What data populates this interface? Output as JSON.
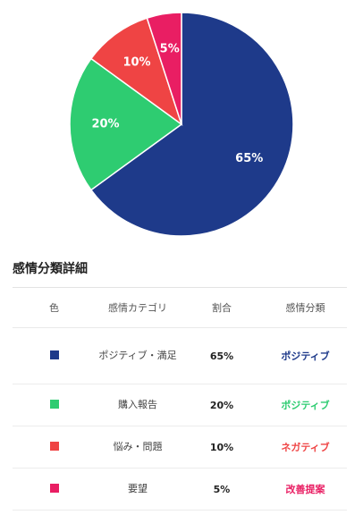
{
  "chart_data": {
    "type": "pie",
    "slices": [
      {
        "label": "ポジティブ・満足",
        "value": 65,
        "display": "65%",
        "color": "#1e3a8a"
      },
      {
        "label": "購入報告",
        "value": 20,
        "display": "20%",
        "color": "#2ecc71"
      },
      {
        "label": "悩み・問題",
        "value": 10,
        "display": "10%",
        "color": "#ef4444"
      },
      {
        "label": "要望",
        "value": 5,
        "display": "5%",
        "color": "#e91e63"
      }
    ]
  },
  "details": {
    "title": "感情分類詳細",
    "headers": {
      "color": "色",
      "category": "感情カテゴリ",
      "ratio": "割合",
      "classification": "感情分類"
    },
    "rows": [
      {
        "category": "ポジティブ・満足",
        "ratio": "65%",
        "classification": "ポジティブ",
        "swatch": "#1e3a8a",
        "class_color": "#1e3a8a"
      },
      {
        "category": "購入報告",
        "ratio": "20%",
        "classification": "ポジティブ",
        "swatch": "#2ecc71",
        "class_color": "#2ecc71"
      },
      {
        "category": "悩み・問題",
        "ratio": "10%",
        "classification": "ネガティブ",
        "swatch": "#ef4444",
        "class_color": "#ef4444"
      },
      {
        "category": "要望",
        "ratio": "5%",
        "classification": "改善提案",
        "swatch": "#e91e63",
        "class_color": "#e91e63"
      }
    ]
  }
}
